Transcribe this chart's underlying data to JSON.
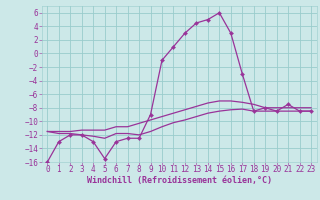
{
  "xlabel": "Windchill (Refroidissement éolien,°C)",
  "bg_color": "#cce8e8",
  "grid_color": "#99cccc",
  "line_color": "#993399",
  "xlim_min": -0.5,
  "xlim_max": 23.5,
  "ylim_min": -16,
  "ylim_max": 7,
  "xticks": [
    0,
    1,
    2,
    3,
    4,
    5,
    6,
    7,
    8,
    9,
    10,
    11,
    12,
    13,
    14,
    15,
    16,
    17,
    18,
    19,
    20,
    21,
    22,
    23
  ],
  "yticks": [
    -16,
    -14,
    -12,
    -10,
    -8,
    -6,
    -4,
    -2,
    0,
    2,
    4,
    6
  ],
  "hours": [
    0,
    1,
    2,
    3,
    4,
    5,
    6,
    7,
    8,
    9,
    10,
    11,
    12,
    13,
    14,
    15,
    16,
    17,
    18,
    19,
    20,
    21,
    22,
    23
  ],
  "windchill": [
    -16,
    -13,
    -12,
    -12,
    -13,
    -15.5,
    -13,
    -12.5,
    -12.5,
    -9,
    -1,
    1,
    3,
    4.5,
    5,
    6,
    3,
    -3,
    -8.5,
    -8,
    -8.5,
    -7.5,
    -8.5,
    -8.5
  ],
  "trend1": [
    -11.5,
    -11.8,
    -11.8,
    -12.0,
    -12.2,
    -12.5,
    -11.8,
    -11.8,
    -12.0,
    -11.5,
    -10.8,
    -10.2,
    -9.8,
    -9.3,
    -8.8,
    -8.5,
    -8.3,
    -8.2,
    -8.5,
    -8.5,
    -8.5,
    -8.5,
    -8.5,
    -8.5
  ],
  "trend2": [
    -11.5,
    -11.5,
    -11.5,
    -11.3,
    -11.3,
    -11.3,
    -10.8,
    -10.8,
    -10.3,
    -9.8,
    -9.3,
    -8.8,
    -8.3,
    -7.8,
    -7.3,
    -7.0,
    -7.0,
    -7.2,
    -7.5,
    -8.0,
    -8.0,
    -8.0,
    -8.0,
    -8.0
  ],
  "tick_fontsize": 5.5,
  "xlabel_fontsize": 6.0,
  "lw": 0.9,
  "marker_size": 2.2
}
